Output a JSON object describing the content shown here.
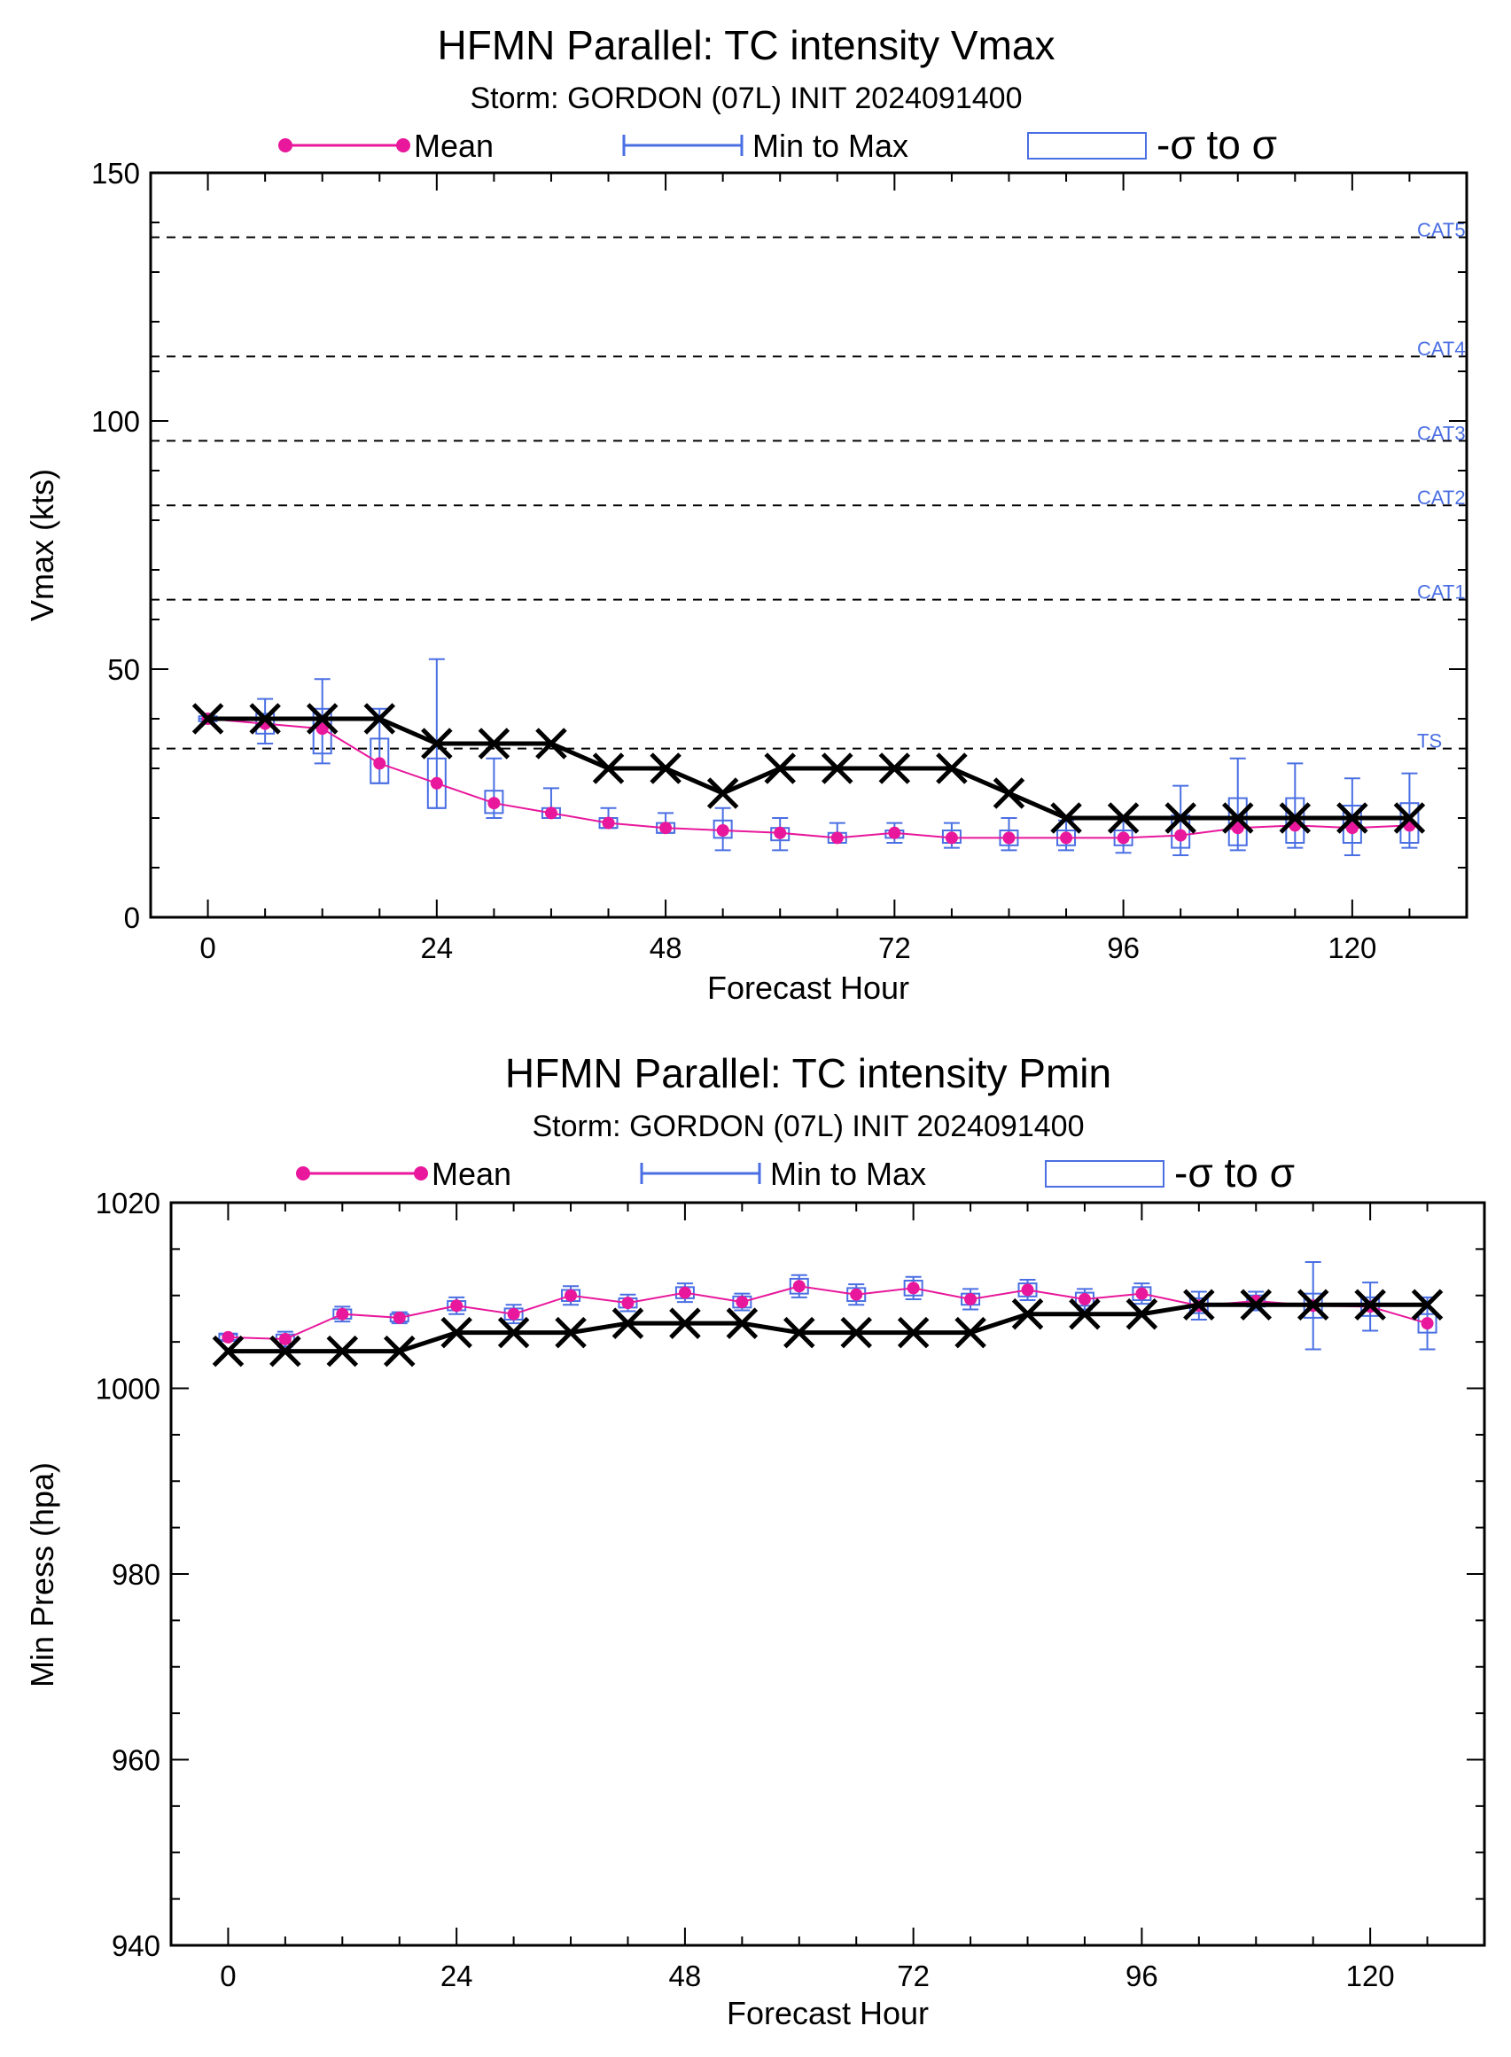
{
  "colors": {
    "mean": "#e8179b",
    "spread": "#4a6fe3",
    "observed": "#000000",
    "threshold": "#000000",
    "category_label": "#4a6fe3"
  },
  "chart_data": [
    {
      "type": "line",
      "title": "HFMN Parallel: TC intensity Vmax",
      "subtitle": "Storm: GORDON (07L) INIT 2024091400",
      "legend": [
        {
          "label": "Mean"
        },
        {
          "label": "Min to Max"
        },
        {
          "label": "-σ to σ"
        }
      ],
      "xlabel": "Forecast Hour",
      "ylabel": "Vmax (kts)",
      "xlim": [
        -6,
        132
      ],
      "ylim": [
        0,
        150
      ],
      "xticks": [
        0,
        24,
        48,
        72,
        96,
        120
      ],
      "yticks": [
        0,
        50,
        100,
        150
      ],
      "hours": [
        0,
        6,
        12,
        18,
        24,
        30,
        36,
        42,
        48,
        54,
        60,
        66,
        72,
        78,
        84,
        90,
        96,
        102,
        108,
        114,
        120,
        126
      ],
      "thresholds": [
        {
          "label": "TS",
          "value": 34
        },
        {
          "label": "CAT1",
          "value": 64
        },
        {
          "label": "CAT2",
          "value": 83
        },
        {
          "label": "CAT3",
          "value": 96
        },
        {
          "label": "CAT4",
          "value": 113
        },
        {
          "label": "CAT5",
          "value": 137
        }
      ],
      "series": [
        {
          "name": "Mean",
          "values": [
            40,
            39,
            38,
            31,
            27,
            23,
            21,
            19,
            18,
            17.5,
            17,
            16,
            17,
            16,
            16,
            16,
            16,
            16.5,
            18,
            18.5,
            18,
            18.5
          ]
        },
        {
          "name": "Min to Max",
          "min": [
            40,
            35,
            31,
            27,
            22,
            20,
            20,
            18,
            17,
            13.5,
            13.5,
            15,
            15,
            14,
            13.5,
            13.5,
            13,
            12.5,
            13.5,
            14,
            12.5,
            14
          ],
          "max": [
            40,
            44,
            48,
            42,
            52,
            32,
            26,
            22,
            21,
            22,
            20,
            19,
            19,
            19,
            20,
            19.5,
            20,
            26.5,
            32,
            31,
            28,
            29
          ]
        },
        {
          "name": "-σ to σ",
          "low": [
            39.5,
            37,
            33,
            27,
            22,
            21,
            20,
            18,
            17,
            16,
            15.5,
            15,
            16,
            15,
            14.5,
            14.5,
            14.5,
            14,
            14.5,
            15,
            15,
            15
          ],
          "high": [
            40.5,
            41,
            42,
            36,
            32,
            25.5,
            22,
            20,
            19,
            19.5,
            18,
            17,
            17.5,
            17.5,
            17.5,
            17.5,
            17.5,
            20.5,
            24,
            24,
            22.5,
            23
          ]
        },
        {
          "name": "",
          "values": [
            40,
            40,
            40,
            40,
            35,
            35,
            35,
            30,
            30,
            25,
            30,
            30,
            30,
            30,
            25,
            20,
            20,
            20,
            20,
            20,
            20,
            20
          ]
        }
      ]
    },
    {
      "type": "line",
      "title": "HFMN Parallel: TC intensity Pmin",
      "subtitle": "Storm: GORDON (07L) INIT 2024091400",
      "legend": [
        {
          "label": "Mean"
        },
        {
          "label": "Min to Max"
        },
        {
          "label": "-σ to σ"
        }
      ],
      "xlabel": "Forecast Hour",
      "ylabel": "Min Press (hpa)",
      "xlim": [
        -6,
        132
      ],
      "ylim": [
        940,
        1020
      ],
      "xticks": [
        0,
        24,
        48,
        72,
        96,
        120
      ],
      "yticks": [
        940,
        960,
        980,
        1000,
        1020
      ],
      "hours": [
        0,
        6,
        12,
        18,
        24,
        30,
        36,
        42,
        48,
        54,
        60,
        66,
        72,
        78,
        84,
        90,
        96,
        102,
        108,
        114,
        120,
        126
      ],
      "series": [
        {
          "name": "Mean",
          "values": [
            1005.5,
            1005.3,
            1008,
            1007.6,
            1008.9,
            1008,
            1010,
            1009.2,
            1010.3,
            1009.3,
            1011,
            1010.1,
            1010.8,
            1009.6,
            1010.6,
            1009.6,
            1010.2,
            1008.9,
            1009.4,
            1008.9,
            1008.8,
            1007
          ]
        },
        {
          "name": "Min to Max",
          "min": [
            1005.2,
            1004.5,
            1007.2,
            1007,
            1008,
            1007,
            1009,
            1008.3,
            1009.3,
            1008.4,
            1009.8,
            1009,
            1009.6,
            1008.5,
            1009.5,
            1008.5,
            1009.1,
            1007.4,
            1008.4,
            1004.2,
            1006.2,
            1004.2
          ]
        },
        {
          "name": "-σ to σ",
          "low": [
            1005.1,
            1004.8,
            1007.5,
            1007.2,
            1008.4,
            1007.4,
            1009.4,
            1008.7,
            1009.7,
            1008.7,
            1010.2,
            1009.4,
            1010,
            1009,
            1009.9,
            1008.9,
            1009.5,
            1008.1,
            1008.8,
            1007.6,
            1007.8,
            1006
          ]
        },
        {
          "name": "",
          "values": [
            1004,
            1004,
            1004,
            1004,
            1006,
            1006,
            1006,
            1007,
            1007,
            1007,
            1006,
            1006,
            1006,
            1006,
            1008,
            1008,
            1008,
            1009,
            1009,
            1009,
            1009,
            1009
          ]
        }
      ]
    }
  ]
}
